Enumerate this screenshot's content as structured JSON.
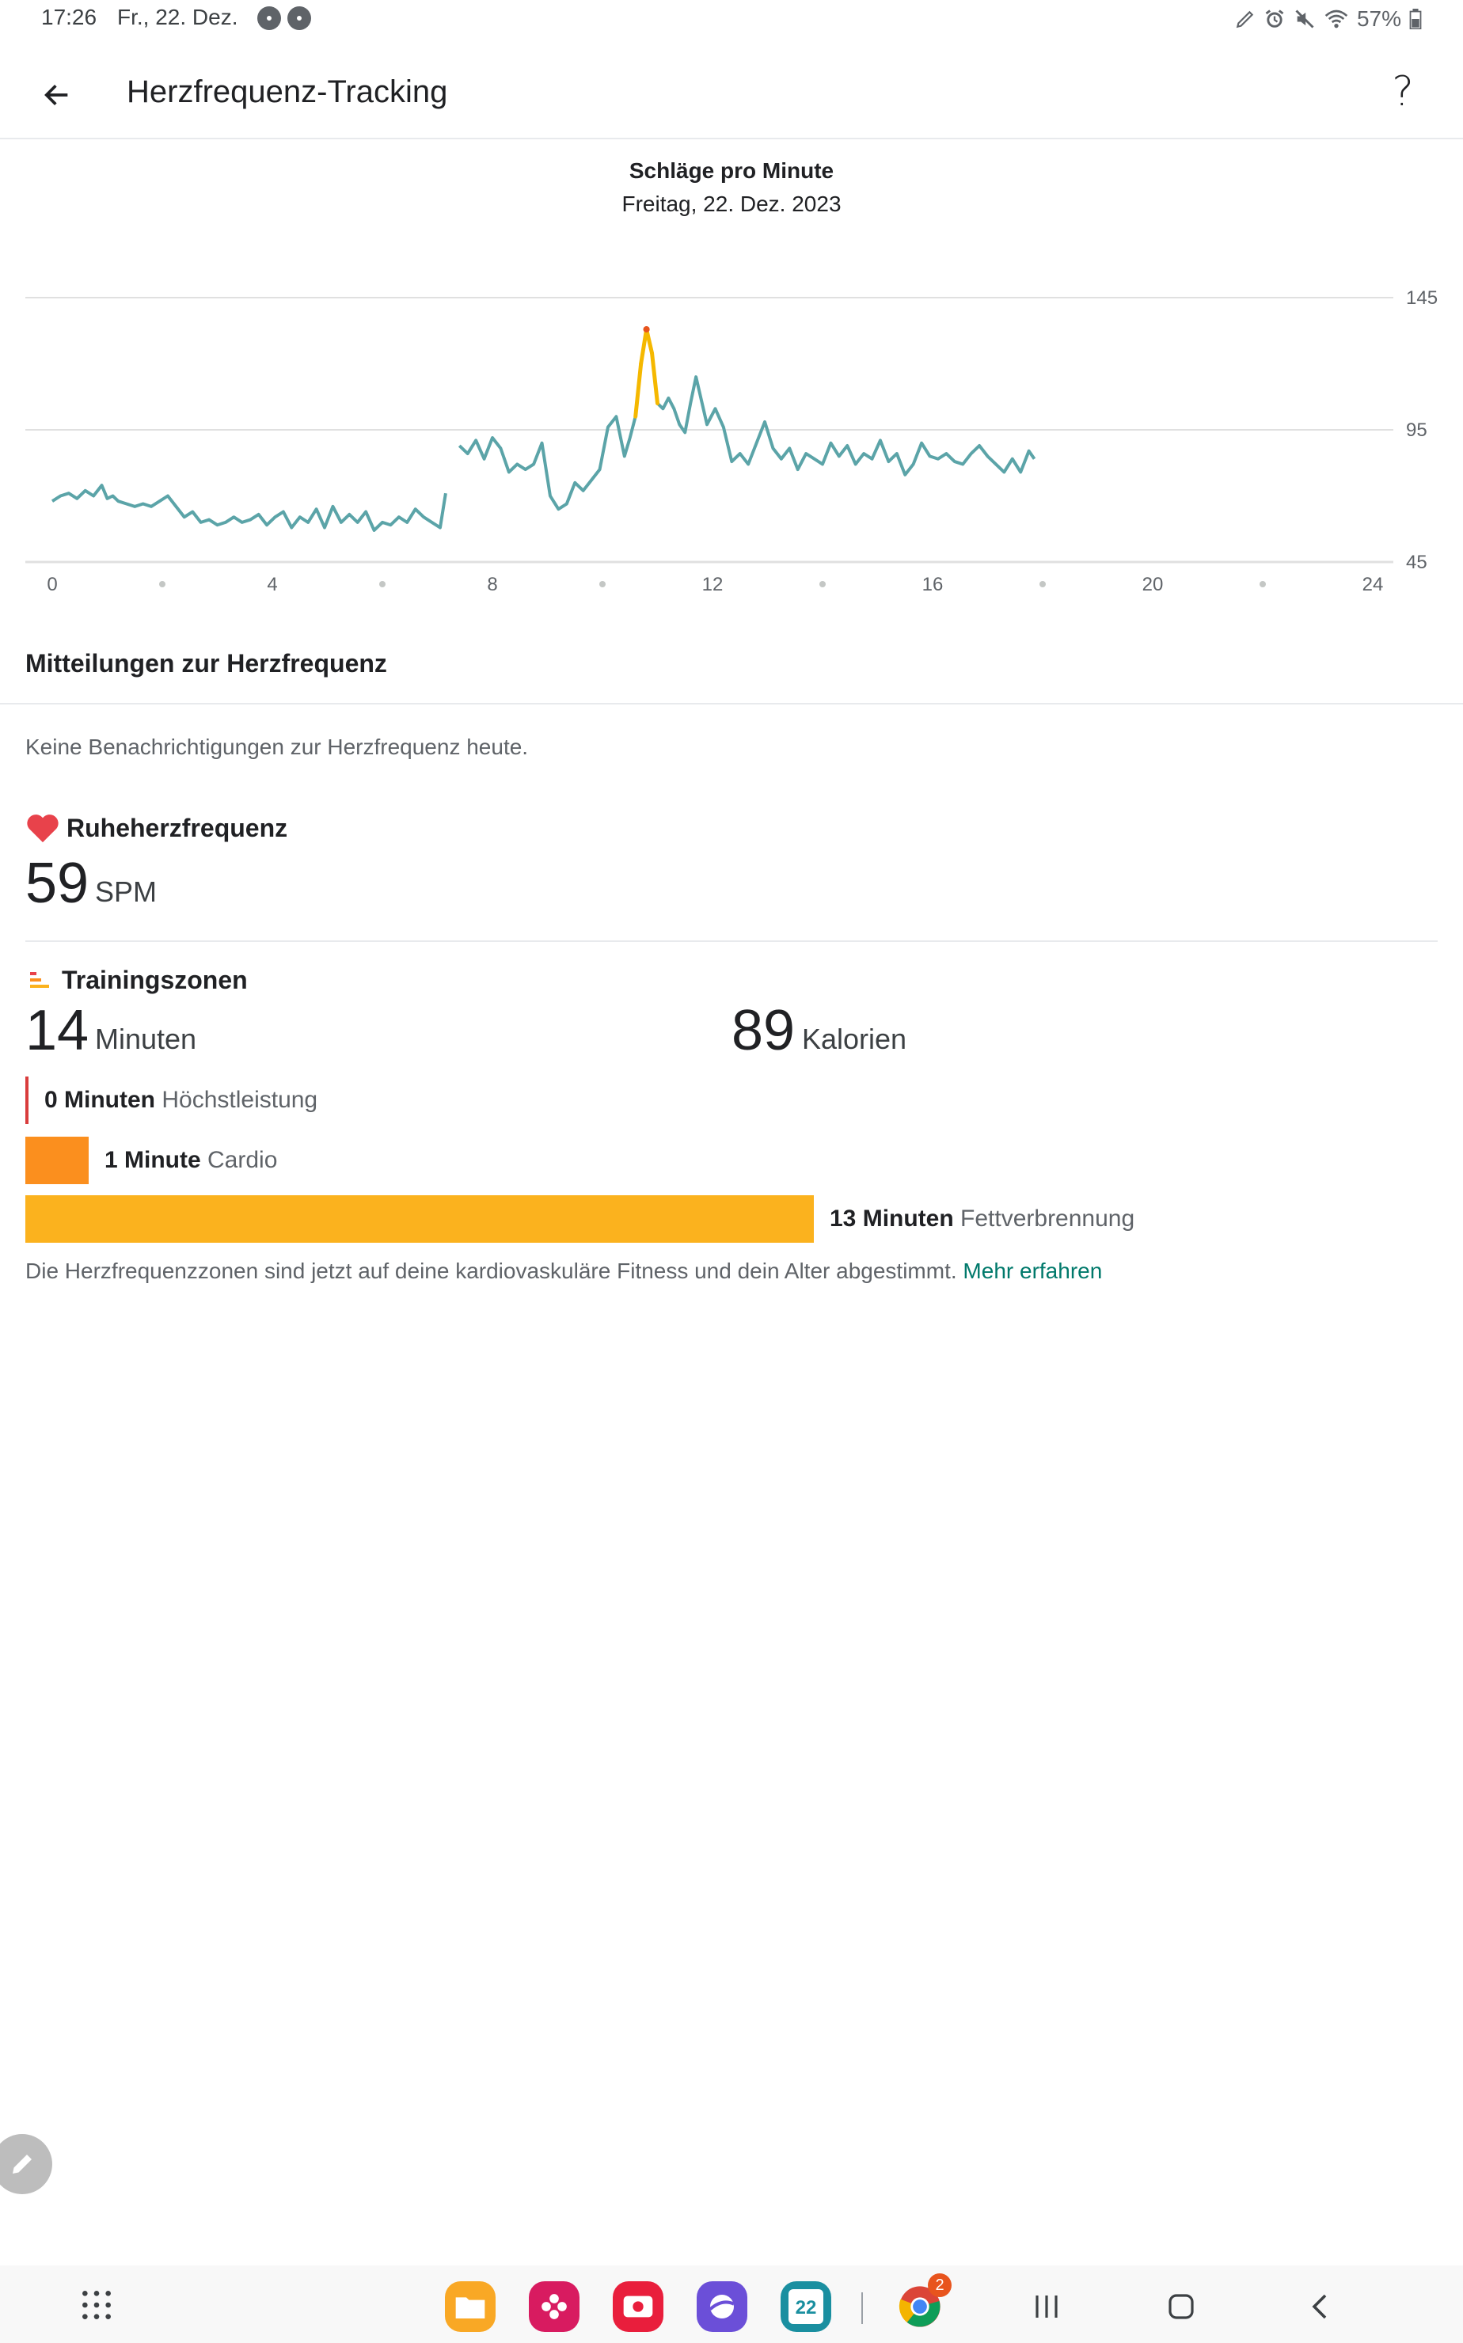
{
  "status_bar": {
    "time": "17:26",
    "date": "Fr., 22. Dez.",
    "battery": "57%"
  },
  "app_bar": {
    "title": "Herzfrequenz-Tracking",
    "help_label": "?"
  },
  "chart_data": {
    "type": "line",
    "title": "Schläge pro Minute",
    "subtitle": "Freitag, 22. Dez. 2023",
    "x_ticks": [
      "0",
      "4",
      "8",
      "12",
      "16",
      "20",
      "24"
    ],
    "y_ticks": [
      "145",
      "95",
      "45"
    ],
    "xlim": [
      0,
      24
    ],
    "ylim": [
      45,
      145
    ],
    "grid": true,
    "colors": {
      "line": "#5ba4a8",
      "elevated": "#f5b800",
      "peak": "#e8541d",
      "grid": "#e0e0e0"
    },
    "series": [
      {
        "segments": [
          {
            "x": [
              0.0,
              0.15,
              0.3,
              0.45,
              0.6,
              0.75,
              0.9,
              1.0,
              1.1,
              1.2,
              1.35,
              1.5,
              1.65,
              1.8,
              1.95,
              2.1,
              2.25,
              2.4,
              2.55,
              2.7,
              2.85,
              3.0,
              3.15,
              3.3,
              3.45,
              3.6,
              3.75,
              3.9,
              4.05,
              4.2,
              4.35,
              4.5,
              4.65,
              4.8,
              4.95,
              5.1,
              5.25,
              5.4,
              5.55,
              5.7,
              5.85,
              6.0,
              6.15,
              6.3,
              6.45,
              6.6,
              6.75,
              6.9,
              7.05,
              7.15
            ],
            "y": [
              68,
              70,
              71,
              69,
              72,
              70,
              74,
              69,
              70,
              68,
              67,
              66,
              67,
              66,
              68,
              70,
              66,
              62,
              64,
              60,
              61,
              59,
              60,
              62,
              60,
              61,
              63,
              59,
              62,
              64,
              58,
              62,
              60,
              65,
              58,
              66,
              60,
              63,
              60,
              64,
              57,
              60,
              59,
              62,
              60,
              65,
              62,
              60,
              58,
              71
            ]
          },
          {
            "x": [
              7.4,
              7.55,
              7.7,
              7.85,
              8.0,
              8.15,
              8.3,
              8.45,
              8.6,
              8.75,
              8.9,
              9.05,
              9.2,
              9.35,
              9.5,
              9.65,
              9.8,
              9.95,
              10.1,
              10.25,
              10.4,
              10.5,
              10.6,
              10.7,
              10.8,
              10.9,
              11.0,
              11.1,
              11.2,
              11.3,
              11.4,
              11.5,
              11.6,
              11.7,
              11.8,
              11.9,
              12.05,
              12.2,
              12.35,
              12.5,
              12.65,
              12.8,
              12.95,
              13.1,
              13.25,
              13.4,
              13.55,
              13.7,
              13.85,
              14.0,
              14.15,
              14.3,
              14.45,
              14.6,
              14.75,
              14.9,
              15.05,
              15.2,
              15.35,
              15.5,
              15.65,
              15.8,
              15.95,
              16.1,
              16.25,
              16.4,
              16.55,
              16.7,
              16.85,
              17.0,
              17.15,
              17.3,
              17.45,
              17.6,
              17.75,
              17.85
            ],
            "y": [
              89,
              86,
              91,
              84,
              92,
              88,
              79,
              82,
              80,
              82,
              90,
              70,
              65,
              67,
              75,
              72,
              76,
              80,
              96,
              100,
              85,
              92,
              100,
              120,
              133,
              124,
              105,
              103,
              107,
              103,
              97,
              94,
              105,
              115,
              106,
              97,
              103,
              96,
              83,
              86,
              82,
              90,
              98,
              88,
              84,
              88,
              80,
              86,
              84,
              82,
              90,
              85,
              89,
              82,
              86,
              84,
              91,
              83,
              86,
              78,
              82,
              90,
              85,
              84,
              86,
              83,
              82,
              86,
              89,
              85,
              82,
              79,
              84,
              79,
              87,
              84
            ]
          }
        ]
      }
    ]
  },
  "notifications": {
    "title": "Mitteilungen zur Herzfrequenz",
    "empty_text": "Keine Benachrichtigungen zur Herzfrequenz heute."
  },
  "resting": {
    "title": "Ruheherzfrequenz",
    "value": "59",
    "unit": "SPM"
  },
  "training": {
    "title": "Trainingszonen",
    "minutes_value": "14",
    "minutes_unit": "Minuten",
    "calories_value": "89",
    "calories_unit": "Kalorien",
    "zones": [
      {
        "amount": "0 Minuten",
        "name": "Höchstleistung",
        "minutes": 0,
        "color": "#d93c3c"
      },
      {
        "amount": "1 Minute",
        "name": "Cardio",
        "minutes": 1,
        "color": "#fb8f1e"
      },
      {
        "amount": "13 Minuten",
        "name": "Fettverbrennung",
        "minutes": 13,
        "color": "#fbb21e"
      }
    ],
    "footer_text": "Die Herzfrequenzzonen sind jetzt auf deine kardiovaskuläre Fitness und dein Alter abgestimmt.",
    "learn_more": "Mehr erfahren"
  },
  "dock": {
    "calendar_day": "22",
    "chrome_badge": "2",
    "icons": [
      "apps-grid-icon",
      "my-files-icon",
      "gallery-icon",
      "screen-recorder-icon",
      "samsung-internet-icon",
      "calendar-icon",
      "chrome-icon"
    ]
  }
}
